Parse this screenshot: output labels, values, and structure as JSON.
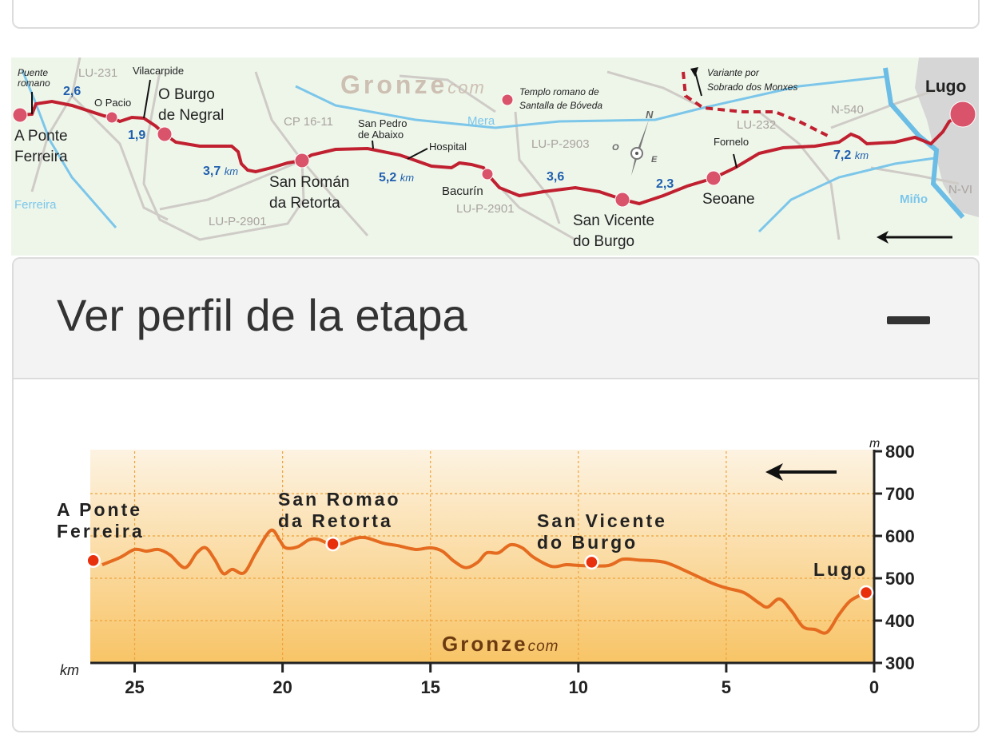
{
  "map": {
    "watermark": "Gronze",
    "watermark_suffix": "com",
    "places": {
      "a_ponte": [
        "A Ponte",
        "Ferreira"
      ],
      "burgo": [
        "O Burgo",
        "de Negral"
      ],
      "o_pacio": "O Pacio",
      "vilacarpide": "Vilacarpide",
      "puente": [
        "Puente",
        "romano"
      ],
      "san_roman": [
        "San Román",
        "da Retorta"
      ],
      "san_pedro": [
        "San Pedro",
        "de Abaixo"
      ],
      "hospital": "Hospital",
      "bacurin": "Bacurín",
      "templo": [
        "Templo romano de",
        "Santalla de Bóveda"
      ],
      "san_vicente": [
        "San Vicente",
        "do Burgo"
      ],
      "seoane": "Seoane",
      "fornelo": "Fornelo",
      "variante": [
        "Variante por",
        "Sobrado dos Monxes"
      ],
      "lugo": "Lugo"
    },
    "roads": {
      "lu231": "LU-231",
      "cp1611": "CP 16-11",
      "lup2901a": "LU-P-2901",
      "lup2901b": "LU-P-2901",
      "lup2903": "LU-P-2903",
      "lu232": "LU-232",
      "n540": "N-540",
      "nvi": "N-VI"
    },
    "rivers": {
      "ferreira": "Ferreira",
      "mera": "Mera",
      "mino": "Miño"
    },
    "distances": {
      "d1": "2,6",
      "d2": "1,9",
      "d3": "3,7",
      "d4": "5,2",
      "d5": "3,6",
      "d6": "2,3",
      "d7": "7,2",
      "unit": "km"
    },
    "compass": {
      "n": "N",
      "o": "O",
      "e": "E"
    },
    "colors": {
      "route": "#c0202f",
      "river": "#7cc6ea",
      "road": "#cfcbc6",
      "bg": "#eef6ea"
    }
  },
  "accordion": {
    "title": "Ver perfil de la etapa",
    "toggle_icon": "minus-icon"
  },
  "chart_data": {
    "type": "area",
    "title": "",
    "xlabel": "km",
    "ylabel": "m",
    "xlim": [
      26.5,
      0
    ],
    "ylim": [
      300,
      800
    ],
    "x_ticks": [
      25,
      20,
      15,
      10,
      5,
      0
    ],
    "y_ticks": [
      300,
      400,
      500,
      600,
      700,
      800
    ],
    "grid": true,
    "watermark": "Gronze",
    "watermark_suffix": "com",
    "direction": "right-to-left",
    "series": [
      {
        "name": "elevation",
        "color": "#e46b1f",
        "points": [
          [
            26.1,
            532
          ],
          [
            25.5,
            549
          ],
          [
            25.0,
            568
          ],
          [
            24.6,
            564
          ],
          [
            24.2,
            568
          ],
          [
            23.8,
            555
          ],
          [
            23.3,
            525
          ],
          [
            22.9,
            560
          ],
          [
            22.6,
            572
          ],
          [
            22.3,
            545
          ],
          [
            22.0,
            511
          ],
          [
            21.7,
            521
          ],
          [
            21.3,
            513
          ],
          [
            20.9,
            560
          ],
          [
            20.4,
            613
          ],
          [
            20.1,
            590
          ],
          [
            19.9,
            572
          ],
          [
            19.5,
            574
          ],
          [
            19.1,
            591
          ],
          [
            18.8,
            592
          ],
          [
            18.4,
            581
          ],
          [
            18.0,
            582
          ],
          [
            17.6,
            593
          ],
          [
            17.2,
            596
          ],
          [
            16.6,
            583
          ],
          [
            16.1,
            577
          ],
          [
            15.5,
            568
          ],
          [
            15.0,
            572
          ],
          [
            14.6,
            564
          ],
          [
            14.2,
            540
          ],
          [
            13.8,
            525
          ],
          [
            13.4,
            538
          ],
          [
            13.1,
            560
          ],
          [
            12.7,
            560
          ],
          [
            12.3,
            579
          ],
          [
            11.9,
            572
          ],
          [
            11.5,
            549
          ],
          [
            10.9,
            528
          ],
          [
            10.4,
            532
          ],
          [
            9.9,
            530
          ],
          [
            9.0,
            530
          ],
          [
            8.5,
            545
          ],
          [
            7.95,
            543
          ],
          [
            7.1,
            538
          ],
          [
            6.3,
            515
          ],
          [
            5.5,
            489
          ],
          [
            5.0,
            477
          ],
          [
            4.4,
            466
          ],
          [
            3.9,
            442
          ],
          [
            3.6,
            432
          ],
          [
            3.2,
            451
          ],
          [
            2.8,
            423
          ],
          [
            2.4,
            385
          ],
          [
            2.0,
            379
          ],
          [
            1.6,
            372
          ],
          [
            1.2,
            413
          ],
          [
            0.8,
            447
          ],
          [
            0.27,
            466
          ]
        ]
      }
    ],
    "stops": [
      {
        "label": [
          "A Ponte",
          "Ferreira"
        ],
        "km": 26.4,
        "elev": 542
      },
      {
        "label": [
          "San Romao",
          "da Retorta"
        ],
        "km": 18.3,
        "elev": 581
      },
      {
        "label": [
          "San Vicente",
          "do Burgo"
        ],
        "km": 9.55,
        "elev": 538
      },
      {
        "label": [
          "Lugo"
        ],
        "km": 0.27,
        "elev": 466
      }
    ]
  }
}
